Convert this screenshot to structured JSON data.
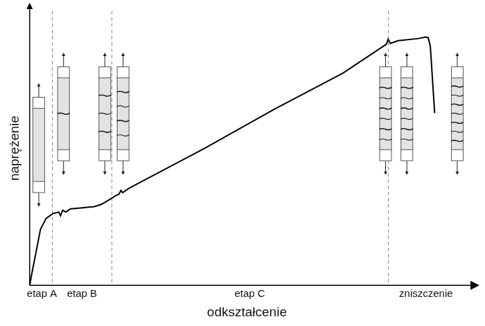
{
  "chart_data": {
    "type": "line",
    "x_label": "odkształcenie",
    "y_label": "naprężenie",
    "x": [
      0,
      0.6,
      1.4,
      2.5,
      3.8,
      5.4,
      6.7,
      7.1,
      7.6,
      8.3,
      9.4,
      11.7,
      14.9,
      16.5,
      18.1,
      19.7,
      20.6,
      21.0,
      21.4,
      22.9,
      40.3,
      56.2,
      72.1,
      82.1,
      82.5,
      83.0,
      84.8,
      89.5,
      91.1,
      91.7,
      92.2,
      93.2
    ],
    "values": [
      0,
      5.1,
      11.5,
      20.5,
      24.4,
      26.2,
      26.7,
      25.4,
      27.4,
      26.7,
      27.9,
      28.2,
      28.7,
      29.5,
      31.0,
      32.6,
      33.3,
      34.6,
      33.8,
      35.4,
      50.0,
      64.1,
      77.4,
      87.9,
      89.7,
      88.2,
      89.2,
      90.0,
      90.5,
      90.3,
      87.2,
      62.8
    ],
    "color": "#000000",
    "xlim": [
      0,
      100
    ],
    "ylim": [
      0,
      100
    ],
    "xticks": [],
    "yticks": [],
    "tick_labels": false,
    "grid": false,
    "stages": [
      {
        "label": "etap A",
        "start": 0,
        "end": 5.2
      },
      {
        "label": "etap B",
        "start": 5.2,
        "end": 18.9
      },
      {
        "label": "etap C",
        "start": 18.9,
        "end": 82.4
      },
      {
        "label": "zniszczenie",
        "start": 82.4,
        "end": 100
      }
    ]
  }
}
